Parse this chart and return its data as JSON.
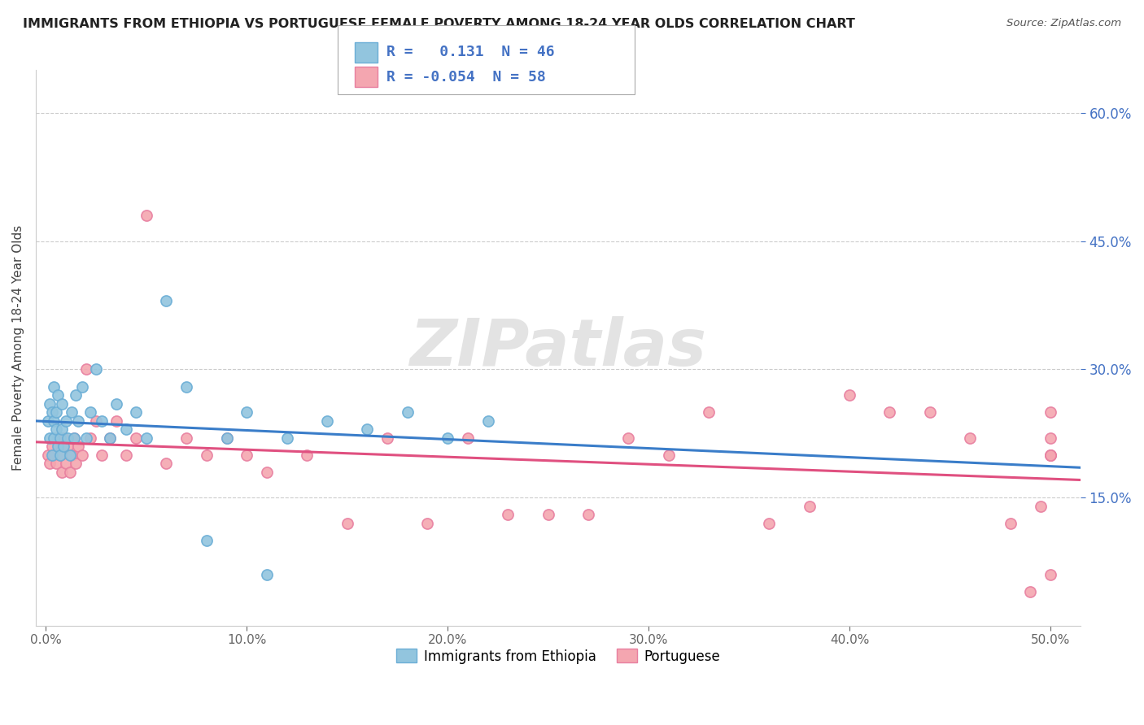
{
  "title": "IMMIGRANTS FROM ETHIOPIA VS PORTUGUESE FEMALE POVERTY AMONG 18-24 YEAR OLDS CORRELATION CHART",
  "source": "Source: ZipAtlas.com",
  "ylabel": "Female Poverty Among 18-24 Year Olds",
  "xlabel_ticks": [
    "0.0%",
    "10.0%",
    "20.0%",
    "30.0%",
    "40.0%",
    "50.0%"
  ],
  "xlabel_vals": [
    0.0,
    0.1,
    0.2,
    0.3,
    0.4,
    0.5
  ],
  "ylabel_ticks": [
    "60.0%",
    "45.0%",
    "30.0%",
    "15.0%"
  ],
  "ylabel_vals": [
    0.6,
    0.45,
    0.3,
    0.15
  ],
  "xlim": [
    -0.005,
    0.515
  ],
  "ylim": [
    0.0,
    0.65
  ],
  "R_ethiopia": 0.131,
  "N_ethiopia": 46,
  "R_portuguese": -0.054,
  "N_portuguese": 58,
  "color_ethiopia": "#92c5de",
  "color_portuguese": "#f4a6b0",
  "edge_ethiopia": "#6baed6",
  "edge_portuguese": "#e87fa0",
  "line_color_ethiopia": "#3a7dc9",
  "line_color_portuguese": "#e05080",
  "tick_color_right": "#4472c4",
  "watermark": "ZIPatlas",
  "legend_label1": "R =   0.131  N = 46",
  "legend_label2": "R = -0.054  N = 58",
  "bottom_label1": "Immigrants from Ethiopia",
  "bottom_label2": "Portuguese",
  "eth_x": [
    0.001,
    0.002,
    0.002,
    0.003,
    0.003,
    0.004,
    0.004,
    0.004,
    0.005,
    0.005,
    0.006,
    0.006,
    0.007,
    0.007,
    0.008,
    0.008,
    0.009,
    0.01,
    0.011,
    0.012,
    0.013,
    0.014,
    0.015,
    0.016,
    0.018,
    0.02,
    0.022,
    0.025,
    0.028,
    0.032,
    0.035,
    0.04,
    0.045,
    0.05,
    0.06,
    0.07,
    0.08,
    0.09,
    0.1,
    0.11,
    0.12,
    0.14,
    0.16,
    0.18,
    0.2,
    0.22
  ],
  "eth_y": [
    0.24,
    0.22,
    0.26,
    0.2,
    0.25,
    0.22,
    0.28,
    0.24,
    0.23,
    0.25,
    0.21,
    0.27,
    0.22,
    0.2,
    0.26,
    0.23,
    0.21,
    0.24,
    0.22,
    0.2,
    0.25,
    0.22,
    0.27,
    0.24,
    0.28,
    0.22,
    0.25,
    0.3,
    0.24,
    0.22,
    0.26,
    0.23,
    0.25,
    0.22,
    0.38,
    0.28,
    0.1,
    0.22,
    0.25,
    0.06,
    0.22,
    0.24,
    0.23,
    0.25,
    0.22,
    0.24
  ],
  "port_x": [
    0.001,
    0.002,
    0.003,
    0.004,
    0.005,
    0.006,
    0.007,
    0.008,
    0.009,
    0.01,
    0.011,
    0.012,
    0.013,
    0.014,
    0.015,
    0.016,
    0.018,
    0.02,
    0.022,
    0.025,
    0.028,
    0.032,
    0.035,
    0.04,
    0.045,
    0.05,
    0.06,
    0.07,
    0.08,
    0.09,
    0.1,
    0.11,
    0.13,
    0.15,
    0.17,
    0.19,
    0.21,
    0.23,
    0.25,
    0.27,
    0.29,
    0.31,
    0.33,
    0.36,
    0.38,
    0.4,
    0.42,
    0.44,
    0.46,
    0.48,
    0.49,
    0.495,
    0.5,
    0.5,
    0.5,
    0.5,
    0.5,
    0.5
  ],
  "port_y": [
    0.2,
    0.19,
    0.21,
    0.2,
    0.19,
    0.22,
    0.2,
    0.18,
    0.22,
    0.19,
    0.21,
    0.18,
    0.2,
    0.22,
    0.19,
    0.21,
    0.2,
    0.3,
    0.22,
    0.24,
    0.2,
    0.22,
    0.24,
    0.2,
    0.22,
    0.48,
    0.19,
    0.22,
    0.2,
    0.22,
    0.2,
    0.18,
    0.2,
    0.12,
    0.22,
    0.12,
    0.22,
    0.13,
    0.13,
    0.13,
    0.22,
    0.2,
    0.25,
    0.12,
    0.14,
    0.27,
    0.25,
    0.25,
    0.22,
    0.12,
    0.04,
    0.14,
    0.2,
    0.22,
    0.25,
    0.2,
    0.06,
    0.2
  ]
}
